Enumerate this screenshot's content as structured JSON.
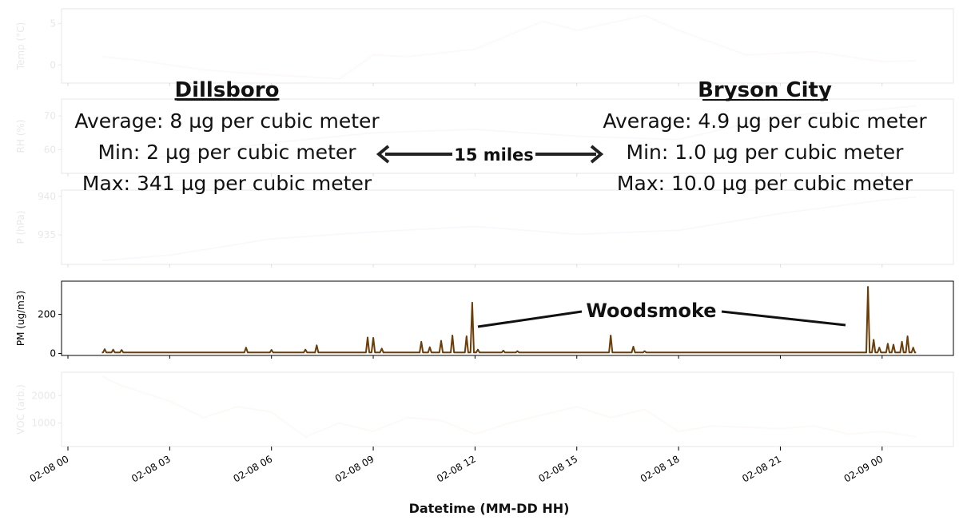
{
  "chart_data": [
    {
      "type": "line",
      "ylabel": "Temp (°C)",
      "yticks": [
        0,
        5
      ],
      "ylim": [
        -2.2,
        6.8
      ],
      "color": "#f4c2c2",
      "faded": true,
      "x": [
        "02-08 01:00",
        "02-08 02:00",
        "02-08 04:00",
        "02-08 06:00",
        "02-08 08:00",
        "02-08 09:00",
        "02-08 10:00",
        "02-08 12:00",
        "02-08 14:00",
        "02-08 15:00",
        "02-08 17:00",
        "02-08 18:00",
        "02-08 20:00",
        "02-08 22:00",
        "02-09 00:00",
        "02-09 01:00"
      ],
      "values": [
        1.0,
        0.6,
        -0.6,
        -1.2,
        -1.7,
        1.2,
        1.0,
        1.9,
        5.3,
        4.2,
        6.0,
        4.2,
        1.2,
        1.6,
        0.4,
        0.5
      ]
    },
    {
      "type": "line",
      "ylabel": "RH (%)",
      "yticks": [
        60,
        70
      ],
      "ylim": [
        53,
        75
      ],
      "color": "#c8c8f4",
      "faded": true,
      "x": [
        "02-08 01:00",
        "02-08 03:00",
        "02-08 06:00",
        "02-08 09:00",
        "02-08 12:00",
        "02-08 15:00",
        "02-08 18:00",
        "02-08 21:00",
        "02-09 00:00",
        "02-09 01:00"
      ],
      "values": [
        57,
        58,
        62,
        65,
        66,
        64,
        63,
        70,
        72,
        73
      ]
    },
    {
      "type": "line",
      "ylabel": "P (hPa)",
      "yticks": [
        935,
        940
      ],
      "ylim": [
        931.2,
        940.8
      ],
      "color": "#c8c8f4",
      "faded": true,
      "x": [
        "02-08 01:00",
        "02-08 03:00",
        "02-08 06:00",
        "02-08 09:00",
        "02-08 12:00",
        "02-08 15:00",
        "02-08 18:00",
        "02-08 21:00",
        "02-09 00:00",
        "02-09 01:00"
      ],
      "values": [
        931.7,
        932.4,
        934.5,
        935.4,
        936.1,
        935.1,
        935.6,
        937.8,
        939.5,
        939.9
      ]
    },
    {
      "type": "line",
      "ylabel": "PM (ug/m3)",
      "yticks": [
        0,
        200
      ],
      "ylim": [
        -10,
        370
      ],
      "color": "#6b3d08",
      "faded": false,
      "baseline": 5,
      "start": "02-08 01:00",
      "end": "02-09 01:00",
      "spikes": [
        {
          "x": "02-08 01:05",
          "value": 22
        },
        {
          "x": "02-08 01:20",
          "value": 20
        },
        {
          "x": "02-08 01:35",
          "value": 18
        },
        {
          "x": "02-08 05:15",
          "value": 30
        },
        {
          "x": "02-08 06:00",
          "value": 18
        },
        {
          "x": "02-08 07:00",
          "value": 20
        },
        {
          "x": "02-08 07:20",
          "value": 42
        },
        {
          "x": "02-08 08:50",
          "value": 82
        },
        {
          "x": "02-08 09:00",
          "value": 80
        },
        {
          "x": "02-08 09:15",
          "value": 25
        },
        {
          "x": "02-08 10:25",
          "value": 60
        },
        {
          "x": "02-08 10:40",
          "value": 32
        },
        {
          "x": "02-08 11:00",
          "value": 65
        },
        {
          "x": "02-08 11:20",
          "value": 92
        },
        {
          "x": "02-08 11:45",
          "value": 88
        },
        {
          "x": "02-08 11:55",
          "value": 260
        },
        {
          "x": "02-08 12:05",
          "value": 20
        },
        {
          "x": "02-08 12:50",
          "value": 15
        },
        {
          "x": "02-08 13:15",
          "value": 12
        },
        {
          "x": "02-08 16:00",
          "value": 92
        },
        {
          "x": "02-08 16:40",
          "value": 35
        },
        {
          "x": "02-08 17:00",
          "value": 12
        },
        {
          "x": "02-08 23:35",
          "value": 341
        },
        {
          "x": "02-08 23:45",
          "value": 70
        },
        {
          "x": "02-08 23:55",
          "value": 30
        },
        {
          "x": "02-09 00:10",
          "value": 50
        },
        {
          "x": "02-09 00:20",
          "value": 45
        },
        {
          "x": "02-09 00:35",
          "value": 60
        },
        {
          "x": "02-09 00:45",
          "value": 88
        },
        {
          "x": "02-09 00:55",
          "value": 30
        }
      ]
    },
    {
      "type": "line",
      "ylabel": "VOC (arb.)",
      "yticks": [
        1000,
        2000
      ],
      "ylim": [
        150,
        2850
      ],
      "color": "#f4c9b3",
      "faded": true,
      "x": [
        "02-08 01:00",
        "02-08 01:30",
        "02-08 03:00",
        "02-08 04:00",
        "02-08 05:00",
        "02-08 06:00",
        "02-08 07:00",
        "02-08 08:00",
        "02-08 09:00",
        "02-08 10:00",
        "02-08 11:00",
        "02-08 12:00",
        "02-08 13:00",
        "02-08 14:00",
        "02-08 15:00",
        "02-08 16:00",
        "02-08 17:00",
        "02-08 18:00",
        "02-08 19:00",
        "02-08 21:00",
        "02-08 22:00",
        "02-08 23:00",
        "02-09 00:00",
        "02-09 01:00"
      ],
      "values": [
        2700,
        2400,
        1800,
        1200,
        1600,
        1400,
        500,
        1000,
        700,
        1200,
        1100,
        600,
        1000,
        1300,
        1600,
        1200,
        1500,
        700,
        900,
        800,
        900,
        600,
        700,
        500
      ]
    }
  ],
  "xaxis": {
    "label": "Datetime (MM-DD HH)",
    "ticks": [
      "02-08 00",
      "02-08 03",
      "02-08 06",
      "02-08 09",
      "02-08 12",
      "02-08 15",
      "02-08 18",
      "02-08 21",
      "02-09 00"
    ]
  },
  "locations": {
    "left": {
      "name": "Dillsboro",
      "average": "Average: 8 µg per cubic meter",
      "min": "Min: 2 µg per cubic meter",
      "max": "Max: 341 µg per cubic meter"
    },
    "right": {
      "name": "Bryson City",
      "average": "Average: 4.9 µg per cubic meter",
      "min": "Min: 1.0 µg per cubic meter",
      "max": "Max: 10.0 µg per cubic meter"
    },
    "distance": "15 miles"
  },
  "annotation": {
    "label": "Woodsmoke"
  }
}
